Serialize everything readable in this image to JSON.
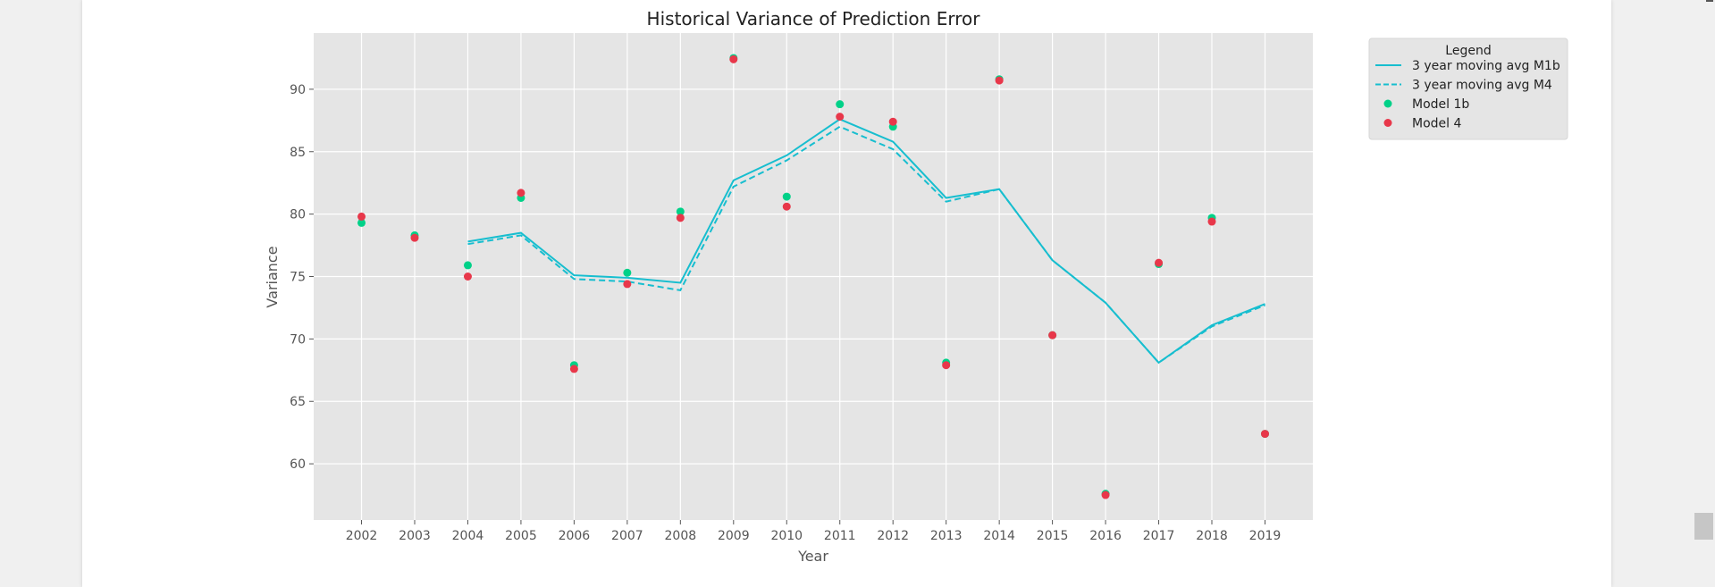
{
  "chart_data": {
    "type": "line",
    "title": "Historical Variance of Prediction Error",
    "xlabel": "Year",
    "ylabel": "Variance",
    "x": [
      2002,
      2003,
      2004,
      2005,
      2006,
      2007,
      2008,
      2009,
      2010,
      2011,
      2012,
      2013,
      2014,
      2015,
      2016,
      2017,
      2018,
      2019
    ],
    "xlim": [
      2001.1,
      2019.9
    ],
    "ylim": [
      55.5,
      94.5
    ],
    "yticks": [
      60,
      65,
      70,
      75,
      80,
      85,
      90
    ],
    "grid": true,
    "legend": {
      "title": "Legend",
      "placement": "outside-top-right"
    },
    "series": [
      {
        "name": "3 year moving avg M1b",
        "kind": "line",
        "style": "solid",
        "color": "#17becf",
        "values": [
          null,
          null,
          77.8,
          78.5,
          75.1,
          74.9,
          74.5,
          82.7,
          84.7,
          87.6,
          85.8,
          81.3,
          82.0,
          76.3,
          72.9,
          68.1,
          71.1,
          72.8
        ]
      },
      {
        "name": "3 year moving avg M4",
        "kind": "line",
        "style": "dashed",
        "color": "#17becf",
        "values": [
          null,
          null,
          77.6,
          78.3,
          74.8,
          74.6,
          73.9,
          82.2,
          84.3,
          87.0,
          85.2,
          81.0,
          82.0,
          76.3,
          72.9,
          68.1,
          71.0,
          72.7
        ]
      },
      {
        "name": "Model 1b",
        "kind": "scatter",
        "color": "#00d188",
        "values": [
          79.3,
          78.3,
          75.9,
          81.3,
          67.9,
          75.3,
          80.2,
          92.5,
          81.4,
          88.8,
          87.0,
          68.1,
          90.8,
          70.3,
          57.6,
          76.0,
          79.7,
          62.4
        ]
      },
      {
        "name": "Model 4",
        "kind": "scatter",
        "color": "#e8374a",
        "values": [
          79.8,
          78.1,
          75.0,
          81.7,
          67.6,
          74.4,
          79.7,
          92.4,
          80.6,
          87.8,
          87.4,
          67.9,
          90.7,
          70.3,
          57.5,
          76.1,
          79.4,
          62.4
        ]
      }
    ]
  },
  "colors": {
    "plot_background": "#e5e5e5",
    "grid": "#ffffff"
  }
}
